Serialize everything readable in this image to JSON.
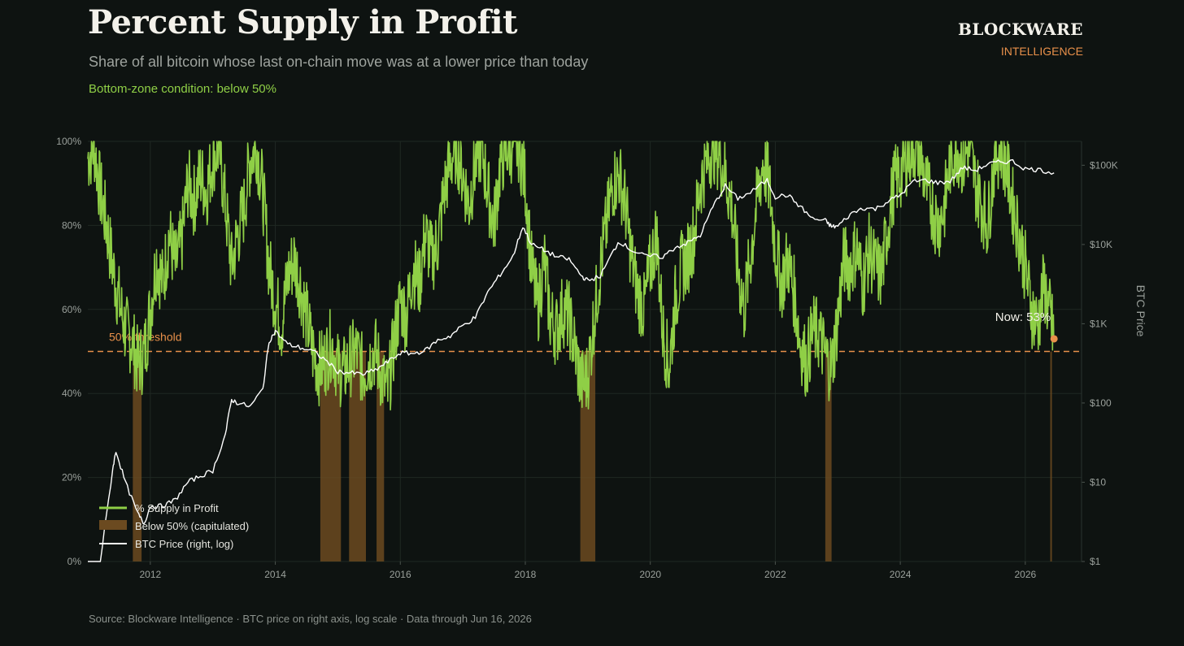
{
  "header": {
    "title": "Percent Supply in Profit",
    "subtitle": "Share of all bitcoin whose last on-chain move was at a lower price than today",
    "condition": "Bottom-zone condition:  below 50%"
  },
  "brand": {
    "name": "BLOCKWARE",
    "sub": "INTELLIGENCE"
  },
  "footer": {
    "text": "Source: Blockware Intelligence  ·  BTC price on right axis, log scale  ·  Data through Jun 16, 2026"
  },
  "colors": {
    "background": "#0e1311",
    "supply_line": "#8fcf46",
    "capitulation_fill": "#6b4a20",
    "price_line": "#ffffff",
    "threshold": "#e8904a",
    "grid": "#1f2823"
  },
  "chart_data": {
    "type": "line",
    "x_axis": {
      "ticks": [
        "2012",
        "2014",
        "2016",
        "2018",
        "2020",
        "2022",
        "2024",
        "2026"
      ],
      "range": [
        2011.0,
        2026.9
      ]
    },
    "y_left": {
      "ticks": [
        "0%",
        "20%",
        "40%",
        "60%",
        "80%",
        "100%"
      ],
      "range": [
        0,
        100
      ]
    },
    "y_right": {
      "label": "BTC Price",
      "scale": "log",
      "ticks": [
        "$1",
        "$10",
        "$100",
        "$1K",
        "$10K",
        "$100K"
      ],
      "range": [
        1,
        200000
      ]
    },
    "threshold": {
      "value": 50,
      "label": "50% threshold"
    },
    "now": {
      "label": "Now: 53%",
      "x": 2026.46,
      "value": 53
    },
    "legend": {
      "supply": "% Supply in Profit",
      "capitulation": "Below 50% (capitulated)",
      "price": "BTC Price (right, log)"
    },
    "series": [
      {
        "name": "% Supply in Profit",
        "axis": "left",
        "x": [
          2011.0,
          2011.1,
          2011.2,
          2011.3,
          2011.4,
          2011.5,
          2011.6,
          2011.7,
          2011.8,
          2011.9,
          2012.0,
          2012.1,
          2012.2,
          2012.3,
          2012.4,
          2012.5,
          2012.6,
          2012.7,
          2012.8,
          2012.9,
          2013.0,
          2013.1,
          2013.2,
          2013.3,
          2013.4,
          2013.5,
          2013.6,
          2013.7,
          2013.8,
          2013.9,
          2014.0,
          2014.1,
          2014.2,
          2014.3,
          2014.4,
          2014.5,
          2014.6,
          2014.7,
          2014.8,
          2014.9,
          2015.0,
          2015.1,
          2015.2,
          2015.3,
          2015.4,
          2015.5,
          2015.6,
          2015.7,
          2015.8,
          2015.9,
          2016.0,
          2016.1,
          2016.2,
          2016.3,
          2016.4,
          2016.5,
          2016.6,
          2016.7,
          2016.8,
          2016.9,
          2017.0,
          2017.1,
          2017.2,
          2017.3,
          2017.4,
          2017.5,
          2017.6,
          2017.7,
          2017.8,
          2017.9,
          2018.0,
          2018.1,
          2018.2,
          2018.3,
          2018.4,
          2018.5,
          2018.6,
          2018.7,
          2018.8,
          2018.9,
          2019.0,
          2019.1,
          2019.2,
          2019.3,
          2019.4,
          2019.5,
          2019.6,
          2019.7,
          2019.8,
          2019.9,
          2020.0,
          2020.1,
          2020.2,
          2020.3,
          2020.4,
          2020.5,
          2020.6,
          2020.7,
          2020.8,
          2020.9,
          2021.0,
          2021.1,
          2021.2,
          2021.3,
          2021.4,
          2021.5,
          2021.6,
          2021.7,
          2021.8,
          2021.9,
          2022.0,
          2022.1,
          2022.2,
          2022.3,
          2022.4,
          2022.5,
          2022.6,
          2022.7,
          2022.8,
          2022.9,
          2023.0,
          2023.1,
          2023.2,
          2023.3,
          2023.4,
          2023.5,
          2023.6,
          2023.7,
          2023.8,
          2023.9,
          2024.0,
          2024.1,
          2024.2,
          2024.3,
          2024.4,
          2024.5,
          2024.6,
          2024.7,
          2024.8,
          2024.9,
          2025.0,
          2025.1,
          2025.2,
          2025.3,
          2025.4,
          2025.5,
          2025.6,
          2025.7,
          2025.8,
          2025.9,
          2026.0,
          2026.1,
          2026.2,
          2026.3,
          2026.4,
          2026.46
        ],
        "values": [
          96,
          99,
          88,
          80,
          70,
          62,
          55,
          53,
          47,
          49,
          60,
          72,
          66,
          78,
          70,
          76,
          90,
          86,
          92,
          88,
          96,
          99,
          85,
          70,
          78,
          84,
          96,
          99,
          88,
          70,
          62,
          56,
          68,
          72,
          66,
          58,
          50,
          46,
          48,
          52,
          46,
          45,
          48,
          50,
          45,
          48,
          50,
          44,
          40,
          52,
          62,
          58,
          70,
          66,
          78,
          72,
          76,
          88,
          95,
          99,
          92,
          85,
          95,
          99,
          88,
          80,
          95,
          98,
          99,
          99,
          90,
          70,
          60,
          72,
          58,
          55,
          60,
          58,
          50,
          42,
          44,
          58,
          70,
          80,
          90,
          92,
          85,
          72,
          64,
          60,
          70,
          78,
          55,
          46,
          62,
          70,
          72,
          78,
          90,
          95,
          99,
          97,
          92,
          85,
          70,
          60,
          72,
          85,
          95,
          90,
          75,
          66,
          72,
          64,
          52,
          47,
          55,
          54,
          49,
          46,
          58,
          72,
          70,
          75,
          66,
          74,
          70,
          68,
          80,
          90,
          92,
          96,
          99,
          98,
          90,
          85,
          80,
          84,
          95,
          99,
          95,
          99,
          90,
          85,
          80,
          95,
          99,
          94,
          85,
          78,
          70,
          60,
          56,
          66,
          58,
          53
        ]
      },
      {
        "name": "BTC Price (right, log)",
        "axis": "right",
        "x": [
          2011.0,
          2011.2,
          2011.4,
          2011.45,
          2011.6,
          2011.8,
          2011.9,
          2012.0,
          2012.2,
          2012.4,
          2012.6,
          2012.8,
          2013.0,
          2013.2,
          2013.3,
          2013.4,
          2013.6,
          2013.8,
          2013.9,
          2014.0,
          2014.2,
          2014.4,
          2014.6,
          2014.8,
          2015.0,
          2015.2,
          2015.4,
          2015.6,
          2015.8,
          2016.0,
          2016.2,
          2016.4,
          2016.6,
          2016.8,
          2017.0,
          2017.2,
          2017.4,
          2017.6,
          2017.8,
          2017.96,
          2018.1,
          2018.3,
          2018.5,
          2018.7,
          2018.9,
          2019.0,
          2019.2,
          2019.4,
          2019.5,
          2019.7,
          2019.9,
          2020.2,
          2020.4,
          2020.6,
          2020.8,
          2021.0,
          2021.2,
          2021.4,
          2021.6,
          2021.87,
          2022.0,
          2022.2,
          2022.4,
          2022.6,
          2022.8,
          2022.9,
          2023.0,
          2023.2,
          2023.4,
          2023.6,
          2023.8,
          2024.0,
          2024.2,
          2024.4,
          2024.6,
          2024.8,
          2025.0,
          2025.2,
          2025.4,
          2025.6,
          2025.8,
          2026.0,
          2026.2,
          2026.46
        ],
        "values": [
          0.3,
          1,
          15,
          25,
          10,
          4,
          3,
          5,
          5,
          6,
          10,
          12,
          14,
          40,
          110,
          100,
          90,
          150,
          600,
          800,
          550,
          500,
          450,
          350,
          250,
          240,
          230,
          260,
          330,
          430,
          420,
          460,
          620,
          700,
          950,
          1200,
          2500,
          4200,
          7000,
          17000,
          10000,
          8500,
          7000,
          6500,
          4000,
          3500,
          4000,
          8000,
          11000,
          8500,
          7200,
          7000,
          9200,
          10500,
          13000,
          30000,
          55000,
          38000,
          45000,
          65000,
          40000,
          42000,
          30000,
          21000,
          20000,
          16800,
          17000,
          24000,
          29000,
          28000,
          35000,
          42000,
          62000,
          65000,
          60000,
          63000,
          94000,
          86000,
          103000,
          110000,
          112000,
          90000,
          88000,
          80000
        ]
      }
    ],
    "capitulation_periods": [
      [
        2011.72,
        2011.86
      ],
      [
        2014.72,
        2015.05
      ],
      [
        2015.18,
        2015.45
      ],
      [
        2015.62,
        2015.74
      ],
      [
        2018.88,
        2019.12
      ],
      [
        2022.8,
        2022.9
      ],
      [
        2026.4,
        2026.42
      ]
    ]
  }
}
